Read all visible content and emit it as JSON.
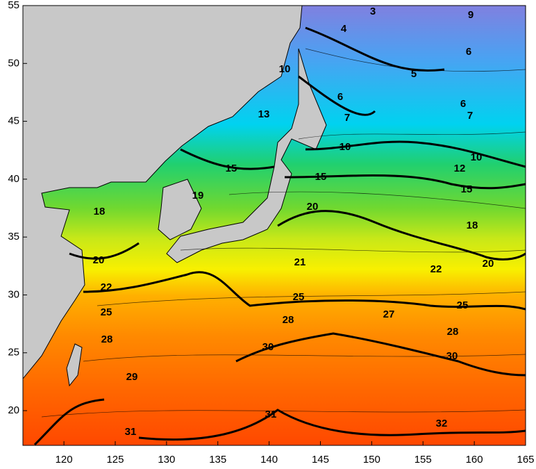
{
  "map": {
    "xlim": [
      116,
      165
    ],
    "xticks": [
      120,
      125,
      130,
      135,
      140,
      145,
      150,
      155,
      160,
      165
    ],
    "ylim": [
      17,
      55
    ],
    "yticks": [
      20,
      25,
      30,
      35,
      40,
      45,
      50,
      55
    ],
    "contour_labels": [
      3,
      9,
      4,
      6,
      5,
      10,
      6,
      6,
      7,
      7,
      13,
      10,
      10,
      12,
      15,
      15,
      15,
      19,
      18,
      20,
      18,
      20,
      21,
      22,
      20,
      22,
      25,
      25,
      25,
      27,
      28,
      28,
      28,
      30,
      30,
      29,
      31,
      32,
      31
    ]
  }
}
